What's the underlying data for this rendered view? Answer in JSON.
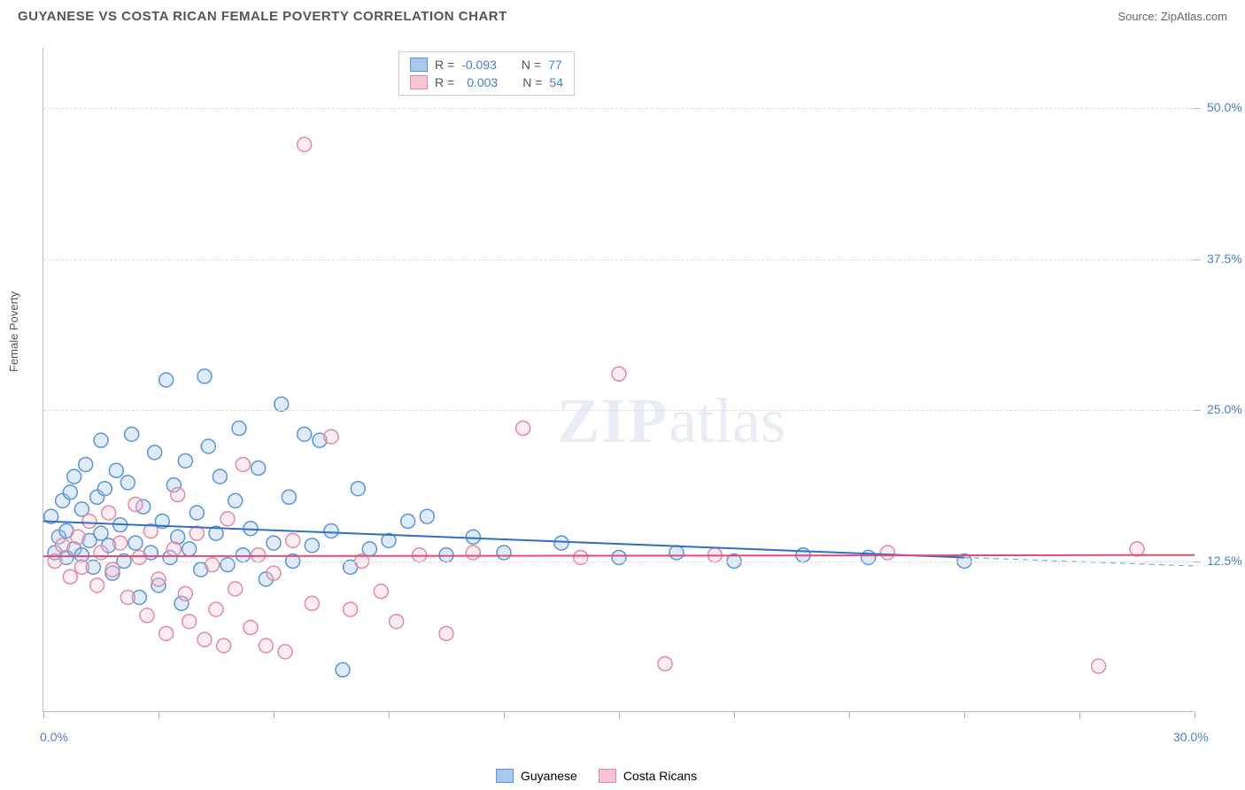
{
  "header": {
    "title": "GUYANESE VS COSTA RICAN FEMALE POVERTY CORRELATION CHART",
    "source_label": "Source:",
    "source_name": "ZipAtlas.com"
  },
  "watermark": {
    "zip": "ZIP",
    "atlas": "atlas"
  },
  "chart": {
    "type": "scatter",
    "ylabel": "Female Poverty",
    "xlim": [
      0,
      30
    ],
    "ylim": [
      0,
      55
    ],
    "xticks": [
      0,
      3,
      6,
      9,
      12,
      15,
      18,
      21,
      24,
      27,
      30
    ],
    "xtick_labels_shown": {
      "0": "0.0%",
      "30": "30.0%"
    },
    "yticks": [
      12.5,
      25.0,
      37.5,
      50.0
    ],
    "ytick_labels": [
      "12.5%",
      "25.0%",
      "37.5%",
      "50.0%"
    ],
    "background_color": "#ffffff",
    "grid_color": "#dddddd",
    "axis_color": "#bbbbbb",
    "label_color": "#4a7fc9",
    "marker_radius": 8,
    "marker_stroke_width": 1.5,
    "marker_fill_opacity": 0.35,
    "line_width": 2,
    "dashed_extension": true,
    "series": [
      {
        "name": "Guyanese",
        "color_fill": "#a7c7ee",
        "color_stroke": "#5a93d6",
        "line_color": "#2f6fc4",
        "R": "-0.093",
        "N": "77",
        "regression": {
          "x1": 0,
          "y1": 15.8,
          "x2": 24,
          "y2": 12.8,
          "ext_x": 30,
          "ext_y": 12.1
        },
        "points": [
          [
            0.2,
            16.2
          ],
          [
            0.3,
            13.2
          ],
          [
            0.4,
            14.5
          ],
          [
            0.5,
            17.5
          ],
          [
            0.6,
            12.8
          ],
          [
            0.6,
            15.0
          ],
          [
            0.7,
            18.2
          ],
          [
            0.8,
            13.5
          ],
          [
            0.8,
            19.5
          ],
          [
            1.0,
            16.8
          ],
          [
            1.0,
            13.0
          ],
          [
            1.1,
            20.5
          ],
          [
            1.2,
            14.2
          ],
          [
            1.3,
            12.0
          ],
          [
            1.4,
            17.8
          ],
          [
            1.5,
            22.5
          ],
          [
            1.5,
            14.8
          ],
          [
            1.6,
            18.5
          ],
          [
            1.7,
            13.8
          ],
          [
            1.8,
            11.5
          ],
          [
            1.9,
            20.0
          ],
          [
            2.0,
            15.5
          ],
          [
            2.1,
            12.5
          ],
          [
            2.2,
            19.0
          ],
          [
            2.3,
            23.0
          ],
          [
            2.4,
            14.0
          ],
          [
            2.5,
            9.5
          ],
          [
            2.6,
            17.0
          ],
          [
            2.8,
            13.2
          ],
          [
            2.9,
            21.5
          ],
          [
            3.0,
            10.5
          ],
          [
            3.1,
            15.8
          ],
          [
            3.2,
            27.5
          ],
          [
            3.3,
            12.8
          ],
          [
            3.4,
            18.8
          ],
          [
            3.5,
            14.5
          ],
          [
            3.6,
            9.0
          ],
          [
            3.7,
            20.8
          ],
          [
            3.8,
            13.5
          ],
          [
            4.0,
            16.5
          ],
          [
            4.1,
            11.8
          ],
          [
            4.2,
            27.8
          ],
          [
            4.3,
            22.0
          ],
          [
            4.5,
            14.8
          ],
          [
            4.6,
            19.5
          ],
          [
            4.8,
            12.2
          ],
          [
            5.0,
            17.5
          ],
          [
            5.1,
            23.5
          ],
          [
            5.2,
            13.0
          ],
          [
            5.4,
            15.2
          ],
          [
            5.6,
            20.2
          ],
          [
            5.8,
            11.0
          ],
          [
            6.0,
            14.0
          ],
          [
            6.2,
            25.5
          ],
          [
            6.4,
            17.8
          ],
          [
            6.5,
            12.5
          ],
          [
            6.8,
            23.0
          ],
          [
            7.0,
            13.8
          ],
          [
            7.2,
            22.5
          ],
          [
            7.5,
            15.0
          ],
          [
            7.8,
            3.5
          ],
          [
            8.0,
            12.0
          ],
          [
            8.2,
            18.5
          ],
          [
            8.5,
            13.5
          ],
          [
            9.0,
            14.2
          ],
          [
            9.5,
            15.8
          ],
          [
            10.0,
            16.2
          ],
          [
            10.5,
            13.0
          ],
          [
            11.2,
            14.5
          ],
          [
            12.0,
            13.2
          ],
          [
            13.5,
            14.0
          ],
          [
            15.0,
            12.8
          ],
          [
            16.5,
            13.2
          ],
          [
            18.0,
            12.5
          ],
          [
            19.8,
            13.0
          ],
          [
            21.5,
            12.8
          ],
          [
            24.0,
            12.5
          ]
        ]
      },
      {
        "name": "Costa Ricans",
        "color_fill": "#f6c5d2",
        "color_stroke": "#e08aa5",
        "line_color": "#d94f78",
        "R": "0.003",
        "N": "54",
        "regression": {
          "x1": 0,
          "y1": 12.9,
          "x2": 30,
          "y2": 13.0,
          "ext_x": 30,
          "ext_y": 13.0
        },
        "points": [
          [
            0.3,
            12.5
          ],
          [
            0.5,
            13.8
          ],
          [
            0.7,
            11.2
          ],
          [
            0.9,
            14.5
          ],
          [
            1.0,
            12.0
          ],
          [
            1.2,
            15.8
          ],
          [
            1.4,
            10.5
          ],
          [
            1.5,
            13.2
          ],
          [
            1.7,
            16.5
          ],
          [
            1.8,
            11.8
          ],
          [
            2.0,
            14.0
          ],
          [
            2.2,
            9.5
          ],
          [
            2.4,
            17.2
          ],
          [
            2.5,
            12.8
          ],
          [
            2.7,
            8.0
          ],
          [
            2.8,
            15.0
          ],
          [
            3.0,
            11.0
          ],
          [
            3.2,
            6.5
          ],
          [
            3.4,
            13.5
          ],
          [
            3.5,
            18.0
          ],
          [
            3.7,
            9.8
          ],
          [
            3.8,
            7.5
          ],
          [
            4.0,
            14.8
          ],
          [
            4.2,
            6.0
          ],
          [
            4.4,
            12.2
          ],
          [
            4.5,
            8.5
          ],
          [
            4.7,
            5.5
          ],
          [
            4.8,
            16.0
          ],
          [
            5.0,
            10.2
          ],
          [
            5.2,
            20.5
          ],
          [
            5.4,
            7.0
          ],
          [
            5.6,
            13.0
          ],
          [
            5.8,
            5.5
          ],
          [
            6.0,
            11.5
          ],
          [
            6.3,
            5.0
          ],
          [
            6.5,
            14.2
          ],
          [
            6.8,
            47.0
          ],
          [
            7.0,
            9.0
          ],
          [
            7.5,
            22.8
          ],
          [
            8.0,
            8.5
          ],
          [
            8.3,
            12.5
          ],
          [
            8.8,
            10.0
          ],
          [
            9.2,
            7.5
          ],
          [
            9.8,
            13.0
          ],
          [
            10.5,
            6.5
          ],
          [
            11.2,
            13.2
          ],
          [
            12.5,
            23.5
          ],
          [
            14.0,
            12.8
          ],
          [
            15.0,
            28.0
          ],
          [
            16.2,
            4.0
          ],
          [
            17.5,
            13.0
          ],
          [
            22.0,
            13.2
          ],
          [
            27.5,
            3.8
          ],
          [
            28.5,
            13.5
          ]
        ]
      }
    ]
  },
  "top_legend": {
    "r_label": "R = ",
    "n_label": "N = "
  },
  "bottom_legend": {
    "items": [
      "Guyanese",
      "Costa Ricans"
    ]
  }
}
